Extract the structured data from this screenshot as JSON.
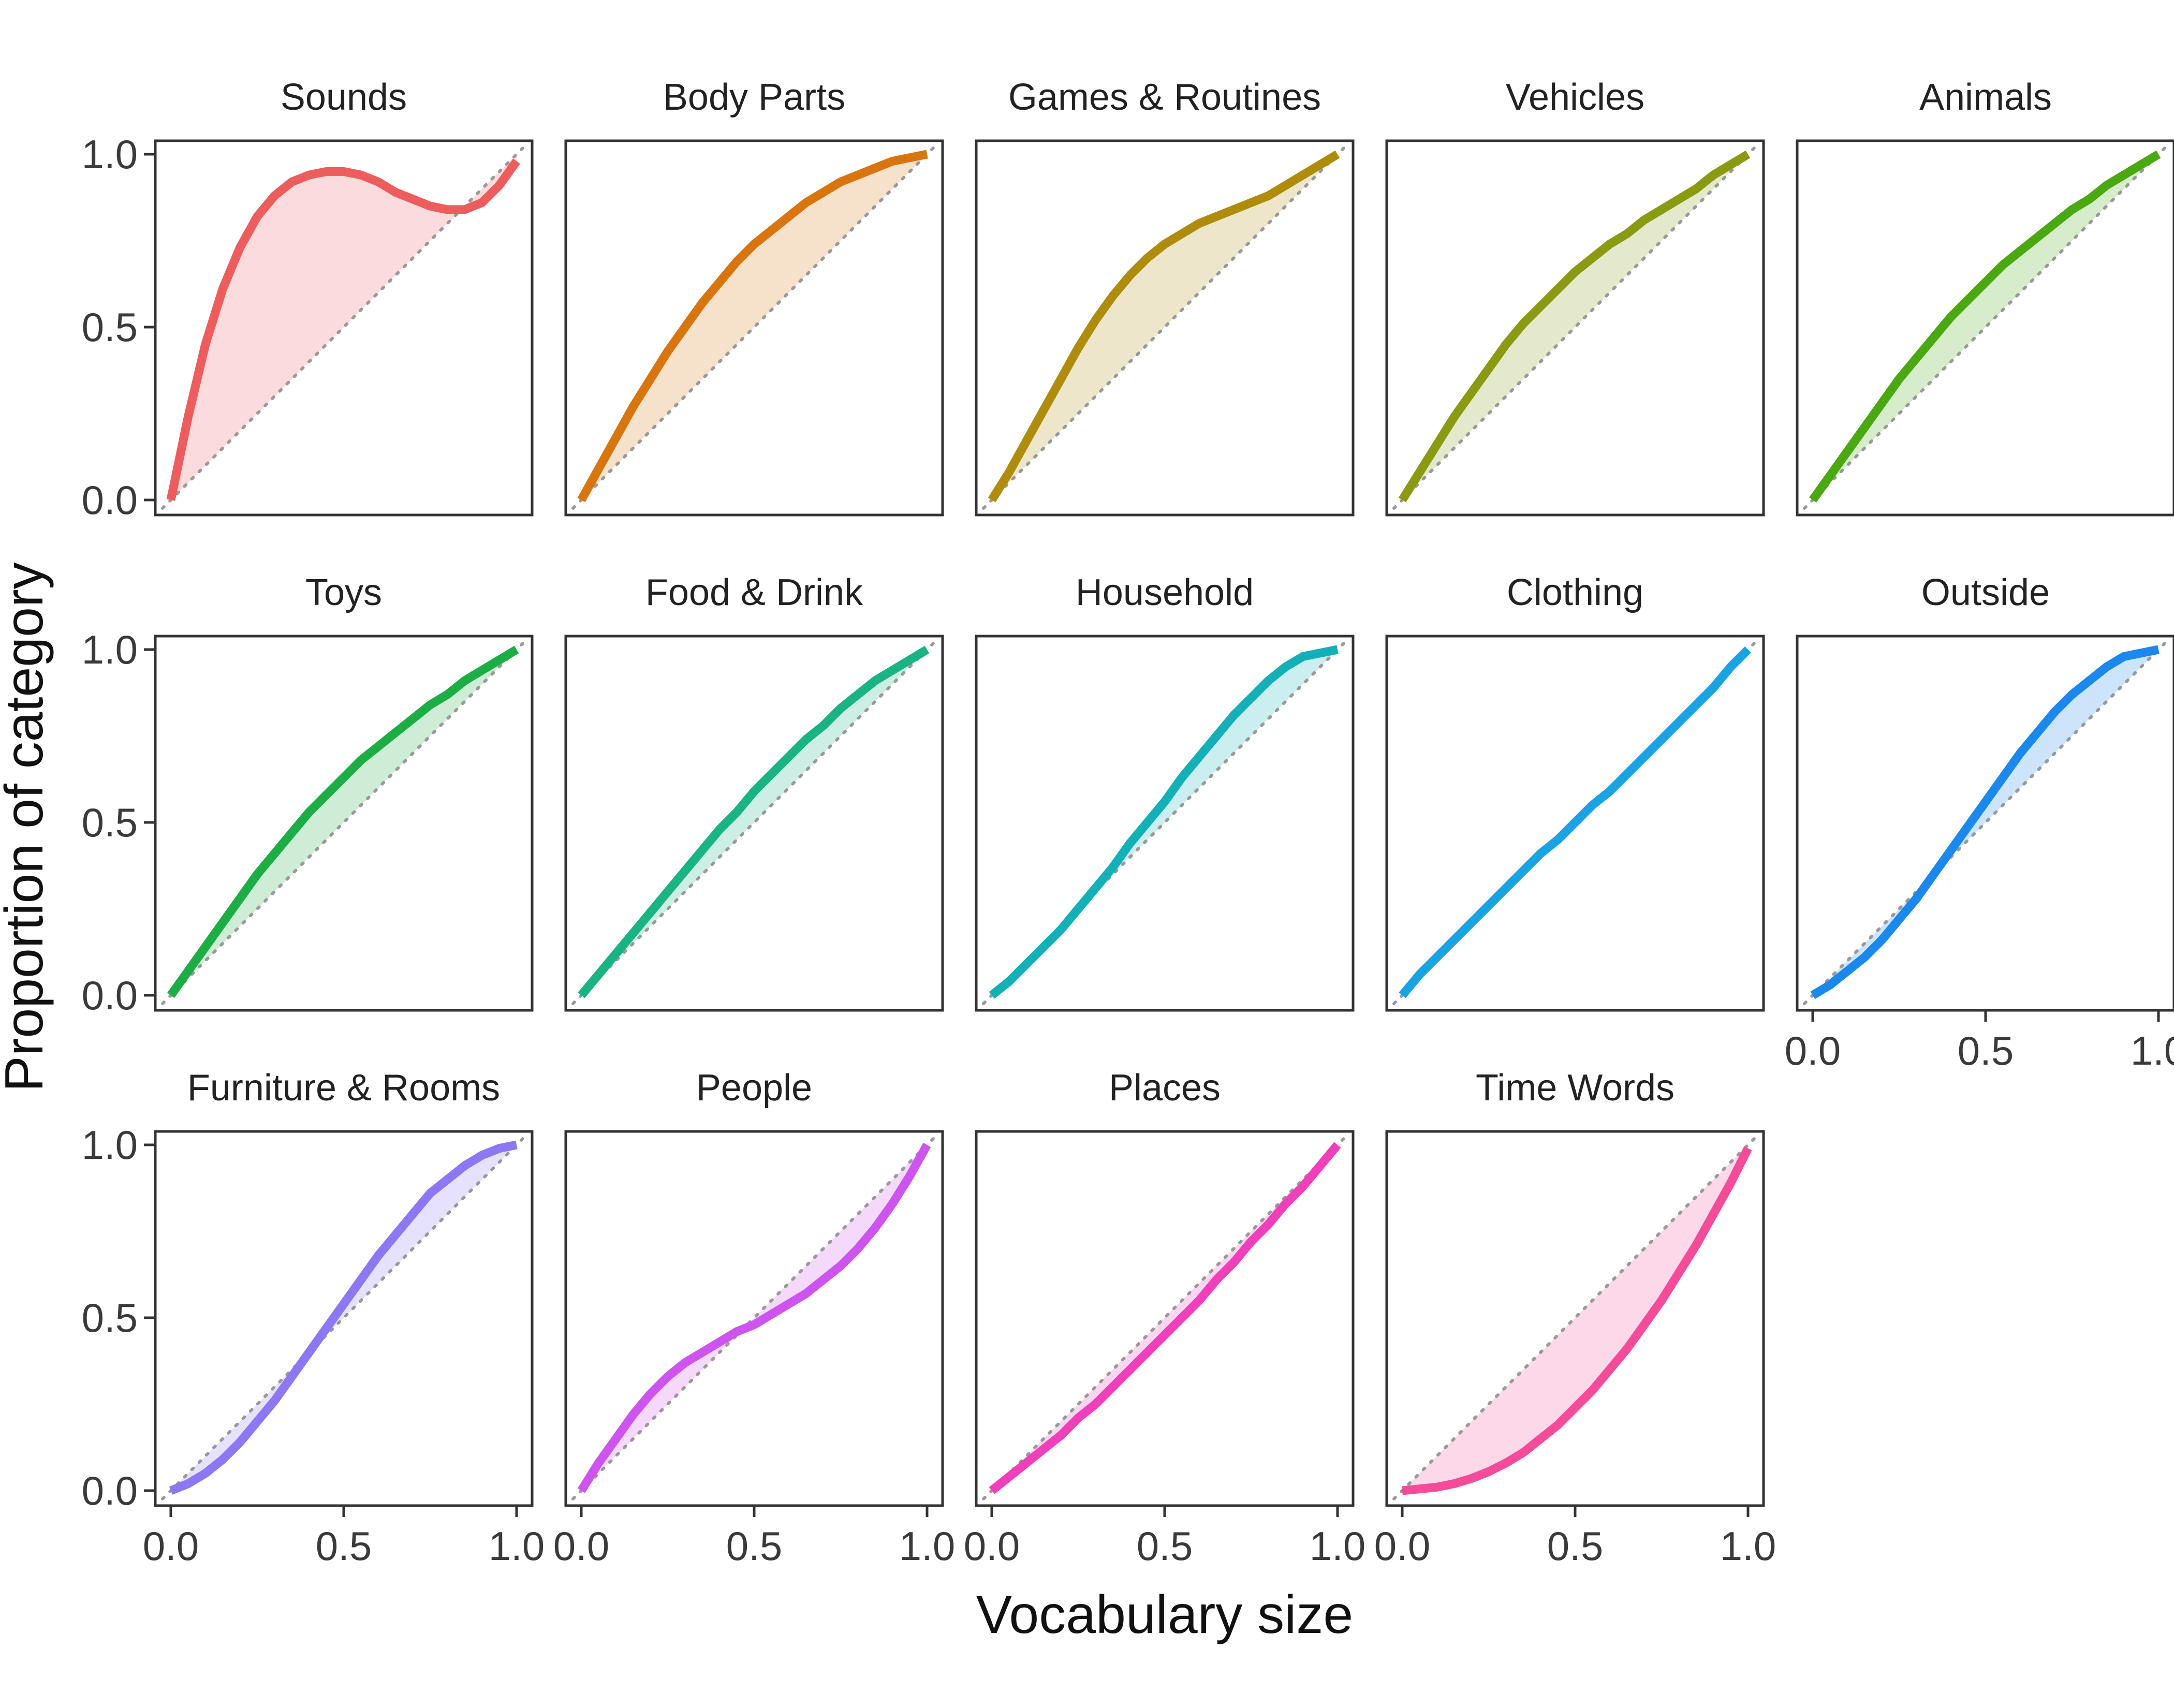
{
  "chart_data": {
    "type": "line",
    "layout": "facet-grid",
    "xlabel": "Vocabulary size",
    "ylabel": "Proportion of category",
    "xlim": [
      0,
      1
    ],
    "ylim": [
      0,
      1
    ],
    "x_ticks": [
      "0.0",
      "0.5",
      "1.0"
    ],
    "y_ticks": [
      "0.0",
      "0.5",
      "1.0"
    ],
    "reference_line": "y = x (dotted)",
    "grid": false,
    "x": [
      0,
      0.05,
      0.1,
      0.15,
      0.2,
      0.25,
      0.3,
      0.35,
      0.4,
      0.45,
      0.5,
      0.55,
      0.6,
      0.65,
      0.7,
      0.75,
      0.8,
      0.85,
      0.9,
      0.95,
      1.0
    ],
    "panels": [
      {
        "name": "Sounds",
        "color": "#ee5d5d",
        "values": [
          0,
          0.24,
          0.45,
          0.61,
          0.73,
          0.82,
          0.88,
          0.92,
          0.94,
          0.95,
          0.95,
          0.94,
          0.92,
          0.89,
          0.87,
          0.85,
          0.84,
          0.84,
          0.86,
          0.91,
          0.98
        ]
      },
      {
        "name": "Body Parts",
        "color": "#d8750f",
        "values": [
          0,
          0.09,
          0.18,
          0.27,
          0.35,
          0.43,
          0.5,
          0.57,
          0.63,
          0.69,
          0.74,
          0.78,
          0.82,
          0.86,
          0.89,
          0.92,
          0.94,
          0.96,
          0.98,
          0.99,
          1.0
        ]
      },
      {
        "name": "Games & Routines",
        "color": "#b08c0c",
        "values": [
          0,
          0.08,
          0.17,
          0.26,
          0.35,
          0.44,
          0.52,
          0.59,
          0.65,
          0.7,
          0.74,
          0.77,
          0.8,
          0.82,
          0.84,
          0.86,
          0.88,
          0.91,
          0.94,
          0.97,
          1.0
        ]
      },
      {
        "name": "Vehicles",
        "color": "#8a9a12",
        "values": [
          0,
          0.08,
          0.16,
          0.24,
          0.31,
          0.38,
          0.45,
          0.51,
          0.56,
          0.61,
          0.66,
          0.7,
          0.74,
          0.77,
          0.81,
          0.84,
          0.87,
          0.9,
          0.94,
          0.97,
          1.0
        ]
      },
      {
        "name": "Animals",
        "color": "#4aa811",
        "values": [
          0,
          0.07,
          0.14,
          0.21,
          0.28,
          0.35,
          0.41,
          0.47,
          0.53,
          0.58,
          0.63,
          0.68,
          0.72,
          0.76,
          0.8,
          0.84,
          0.87,
          0.91,
          0.94,
          0.97,
          1.0
        ]
      },
      {
        "name": "Toys",
        "color": "#1cae44",
        "values": [
          0,
          0.07,
          0.14,
          0.21,
          0.28,
          0.35,
          0.41,
          0.47,
          0.53,
          0.58,
          0.63,
          0.68,
          0.72,
          0.76,
          0.8,
          0.84,
          0.87,
          0.91,
          0.94,
          0.97,
          1.0
        ]
      },
      {
        "name": "Food & Drink",
        "color": "#19b384",
        "values": [
          0,
          0.06,
          0.12,
          0.18,
          0.24,
          0.3,
          0.36,
          0.42,
          0.48,
          0.53,
          0.59,
          0.64,
          0.69,
          0.74,
          0.78,
          0.83,
          0.87,
          0.91,
          0.94,
          0.97,
          1.0
        ]
      },
      {
        "name": "Household",
        "color": "#13b0b8",
        "values": [
          0,
          0.04,
          0.09,
          0.14,
          0.19,
          0.25,
          0.31,
          0.37,
          0.44,
          0.5,
          0.56,
          0.63,
          0.69,
          0.75,
          0.81,
          0.86,
          0.91,
          0.95,
          0.98,
          0.99,
          1.0
        ]
      },
      {
        "name": "Clothing",
        "color": "#1aa3e2",
        "values": [
          0,
          0.06,
          0.11,
          0.16,
          0.21,
          0.26,
          0.31,
          0.36,
          0.41,
          0.45,
          0.5,
          0.55,
          0.59,
          0.64,
          0.69,
          0.74,
          0.79,
          0.84,
          0.89,
          0.95,
          1.0
        ]
      },
      {
        "name": "Outside",
        "color": "#1b88ee",
        "values": [
          0,
          0.03,
          0.07,
          0.11,
          0.16,
          0.22,
          0.28,
          0.35,
          0.42,
          0.49,
          0.56,
          0.63,
          0.7,
          0.76,
          0.82,
          0.87,
          0.91,
          0.95,
          0.98,
          0.99,
          1.0
        ]
      },
      {
        "name": "Furniture & Rooms",
        "color": "#8e77f2",
        "values": [
          0,
          0.02,
          0.05,
          0.09,
          0.14,
          0.2,
          0.26,
          0.33,
          0.4,
          0.47,
          0.54,
          0.61,
          0.68,
          0.74,
          0.8,
          0.86,
          0.9,
          0.94,
          0.97,
          0.99,
          1.0
        ]
      },
      {
        "name": "People",
        "color": "#cd54ee",
        "values": [
          0,
          0.08,
          0.15,
          0.22,
          0.28,
          0.33,
          0.37,
          0.4,
          0.43,
          0.46,
          0.48,
          0.51,
          0.54,
          0.57,
          0.61,
          0.65,
          0.7,
          0.76,
          0.83,
          0.91,
          1.0
        ]
      },
      {
        "name": "Places",
        "color": "#f03fba",
        "values": [
          0,
          0.04,
          0.08,
          0.12,
          0.16,
          0.21,
          0.25,
          0.3,
          0.35,
          0.4,
          0.45,
          0.5,
          0.55,
          0.61,
          0.66,
          0.72,
          0.77,
          0.83,
          0.88,
          0.94,
          1.0
        ]
      },
      {
        "name": "Time Words",
        "color": "#f54c9a",
        "values": [
          0,
          0.005,
          0.01,
          0.02,
          0.035,
          0.055,
          0.08,
          0.11,
          0.15,
          0.19,
          0.24,
          0.29,
          0.35,
          0.41,
          0.48,
          0.55,
          0.63,
          0.71,
          0.8,
          0.89,
          0.99
        ]
      }
    ]
  }
}
